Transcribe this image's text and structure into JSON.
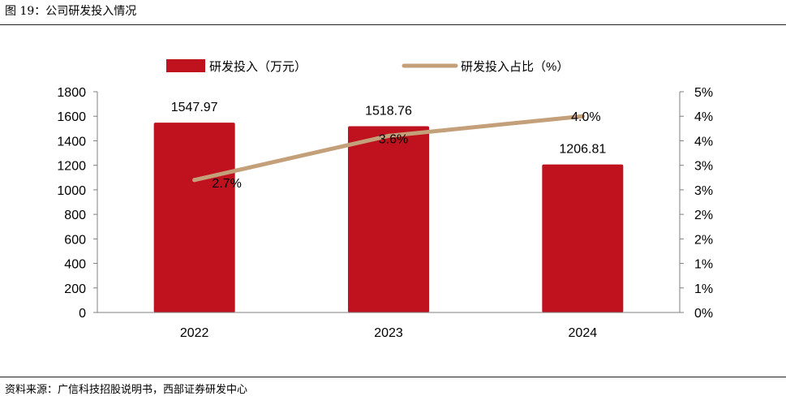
{
  "figure_title": "图 19：公司研发投入情况",
  "source_note": "资料来源：广信科技招股说明书，西部证券研发中心",
  "colors": {
    "bar": "#C0111F",
    "line": "#C4A07A",
    "axis": "#7f7f7f"
  },
  "chart_data": {
    "type": "bar",
    "categories": [
      "2022",
      "2023",
      "2024"
    ],
    "series": [
      {
        "name": "研发投入（万元）",
        "type": "bar",
        "axis": "left",
        "values": [
          1547.97,
          1518.76,
          1206.81
        ],
        "labels": [
          "1547.97",
          "1518.76",
          "1206.81"
        ]
      },
      {
        "name": "研发投入占比（%）",
        "type": "line",
        "axis": "right",
        "values": [
          2.7,
          3.6,
          4.0
        ],
        "labels": [
          "2.7%",
          "3.6%",
          "4.0%"
        ]
      }
    ],
    "left_axis": {
      "ylim": [
        0,
        1800
      ],
      "ticks": [
        "0",
        "200",
        "400",
        "600",
        "800",
        "1000",
        "1200",
        "1400",
        "1600",
        "1800"
      ]
    },
    "right_axis": {
      "ylim": [
        0,
        4.5
      ],
      "ticks": [
        "0%",
        "1%",
        "1%",
        "2%",
        "2%",
        "3%",
        "3%",
        "4%",
        "4%",
        "5%"
      ]
    },
    "legend_position": "top",
    "grid": false
  }
}
